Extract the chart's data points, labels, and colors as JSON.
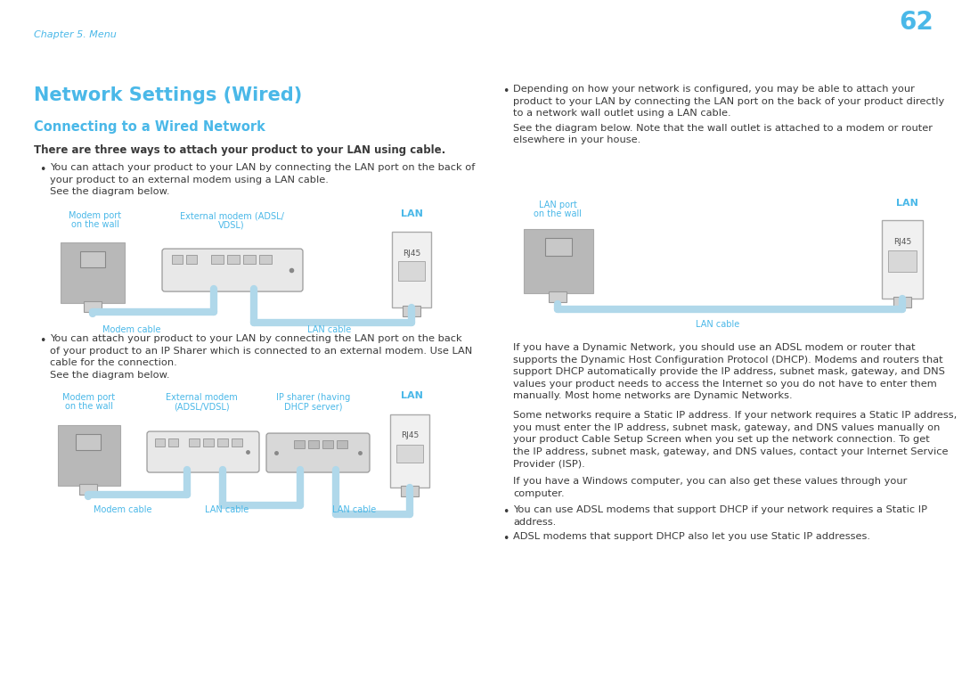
{
  "bg_header_color": "#e8f4fd",
  "bg_main_color": "#ffffff",
  "header_text": "Chapter 5. Menu",
  "header_text_color": "#4ab8e8",
  "page_number": "62",
  "page_number_color": "#4ab8e8",
  "title": "Network Settings (Wired)",
  "title_color": "#4ab8e8",
  "subtitle": "Connecting to a Wired Network",
  "subtitle_color": "#4ab8e8",
  "bold_line": "There are three ways to attach your product to your LAN using cable.",
  "body_color": "#3a3a3a",
  "blue_label_color": "#4ab8e8",
  "cable_color": "#b0d8ea",
  "device_gray": "#b8b8b8",
  "device_light": "#e0e0e0",
  "device_border": "#999999",
  "lan_box_color": "#f5f5f5",
  "bullet1_lines": [
    "You can attach your product to your LAN by connecting the LAN port on the back of",
    "your product to an external modem using a LAN cable.",
    "See the diagram below."
  ],
  "bullet2_lines": [
    "You can attach your product to your LAN by connecting the LAN port on the back",
    "of your product to an IP Sharer which is connected to an external modem. Use LAN",
    "cable for the connection.",
    "See the diagram below."
  ],
  "right_bullet1_lines": [
    "Depending on how your network is configured, you may be able to attach your",
    "product to your LAN by connecting the LAN port on the back of your product directly",
    "to a network wall outlet using a LAN cable.",
    "See the diagram below. Note that the wall outlet is attached to a modem or router",
    "elsewhere in your house."
  ],
  "right_para1_lines": [
    "If you have a Dynamic Network, you should use an ADSL modem or router that",
    "supports the Dynamic Host Configuration Protocol (DHCP). Modems and routers that",
    "support DHCP automatically provide the IP address, subnet mask, gateway, and DNS",
    "values your product needs to access the Internet so you do not have to enter them",
    "manually. Most home networks are Dynamic Networks."
  ],
  "right_para2_lines": [
    "Some networks require a Static IP address. If your network requires a Static IP address,",
    "you must enter the IP address, subnet mask, gateway, and DNS values manually on",
    "your product Cable Setup Screen when you set up the network connection. To get",
    "the IP address, subnet mask, gateway, and DNS values, contact your Internet Service",
    "Provider (ISP)."
  ],
  "right_para3_lines": [
    "If you have a Windows computer, you can also get these values through your",
    "computer."
  ],
  "right_bullet2_lines": [
    "You can use ADSL modems that support DHCP if your network requires a Static IP",
    "address."
  ],
  "right_bullet3": "ADSL modems that support DHCP also let you use Static IP addresses."
}
